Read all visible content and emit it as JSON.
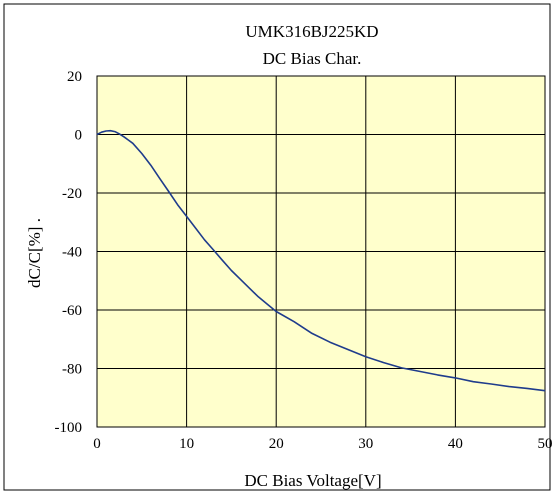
{
  "chart_data": {
    "type": "line",
    "title": "UMK316BJ225KD",
    "subtitle": "DC Bias Char.",
    "xlabel": "DC Bias Voltage[V]",
    "ylabel": "dC/C[%] .",
    "xlim": [
      0,
      50
    ],
    "ylim": [
      -100,
      20
    ],
    "xticks": [
      "0",
      "10",
      "20",
      "30",
      "40",
      "50"
    ],
    "yticks": [
      "20",
      "0",
      "-20",
      "-40",
      "-60",
      "-80",
      "-100"
    ],
    "grid": true,
    "legend": "none",
    "colors": {
      "plot_background": "#FFFFCC",
      "line": "#1F3C8C",
      "grid": "#000000",
      "frame": "#000000"
    },
    "series": [
      {
        "x": [
          0,
          0.5,
          1,
          1.5,
          2,
          2.5,
          3,
          4,
          5,
          6,
          7,
          8,
          9,
          10,
          11,
          12,
          13,
          14,
          15,
          16,
          17,
          18,
          19,
          20,
          22,
          24,
          26,
          28,
          30,
          32,
          34,
          36,
          38,
          40,
          42,
          44,
          46,
          48,
          50
        ],
        "values": [
          0,
          0.8,
          1.2,
          1.3,
          1.0,
          0.2,
          -0.8,
          -3.0,
          -6.5,
          -10.5,
          -15.0,
          -19.5,
          -24.0,
          -28.0,
          -32.0,
          -36.0,
          -39.5,
          -43.0,
          -46.5,
          -49.5,
          -52.5,
          -55.5,
          -58.0,
          -60.5,
          -64.0,
          -68.0,
          -71.0,
          -73.5,
          -76.0,
          -78.0,
          -79.8,
          -81.0,
          -82.2,
          -83.2,
          -84.5,
          -85.3,
          -86.2,
          -86.8,
          -87.6
        ]
      }
    ]
  }
}
